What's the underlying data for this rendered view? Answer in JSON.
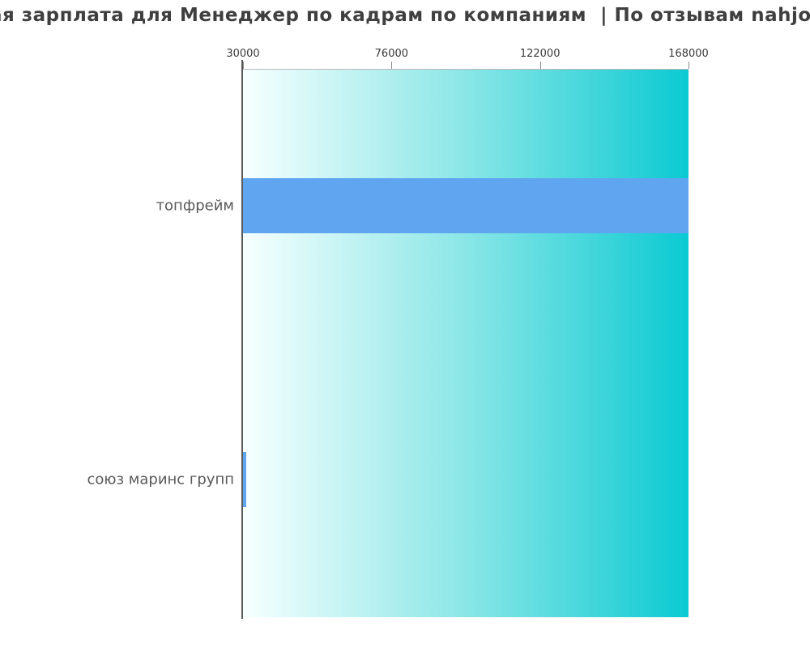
{
  "title": {
    "visible_text": "ая зарплата для Менеджер по кадрам по компаниям  | По отзывам nahjo"
  },
  "colors": {
    "bar_fill": "#5fa5f0",
    "plot_gradient_left": "#f7ffff",
    "plot_gradient_mid": "#8ae6e6",
    "plot_gradient_right": "#0bcad2",
    "axis_line": "#5a5a5a",
    "plot_top_border": "#b9b9b9",
    "tick_label_color": "#3a3a3a",
    "category_label_color": "#595959",
    "title_color": "#3f3f3f",
    "background": "#ffffff"
  },
  "chart_data": {
    "type": "bar",
    "orientation": "horizontal",
    "title": "ая зарплата для Менеджер по кадрам по компаниям  | По отзывам nahjo",
    "categories": [
      "топфрейм",
      "союз маринс групп"
    ],
    "values": [
      168000,
      31000
    ],
    "xlabel": "",
    "ylabel": "",
    "xlim": [
      30000,
      168000
    ],
    "xticks": [
      30000,
      76000,
      122000,
      168000
    ],
    "xtick_labels": [
      "30000",
      "76000",
      "122000",
      "168000"
    ],
    "grid": false,
    "legend": false,
    "plot_background": "horizontal white-to-turquoise gradient"
  }
}
